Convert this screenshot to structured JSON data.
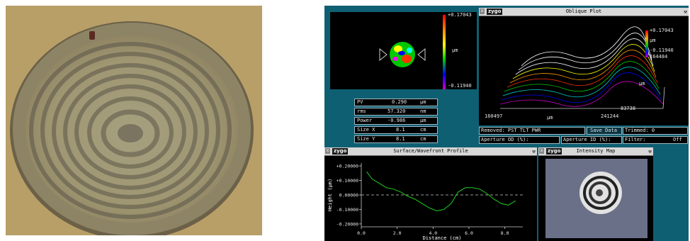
{
  "top_scale": {
    "max": "+0.17043",
    "unit": "µm",
    "min": "-0.11940"
  },
  "stats": [
    {
      "label": "PV",
      "value": "0.290",
      "unit": "µm"
    },
    {
      "label": "rms",
      "value": "57.320",
      "unit": "nm"
    },
    {
      "label": "Power",
      "value": "-0.986",
      "unit": "µm"
    },
    {
      "label": "Size X",
      "value": "8.1",
      "unit": "cm"
    },
    {
      "label": "Size Y",
      "value": "8.1",
      "unit": "cm"
    }
  ],
  "oblique": {
    "logo": "zygo",
    "title": "Oblique Plot",
    "scale_max": "+0.17043",
    "scale_unit": "µm",
    "scale_min": "-0.11940",
    "scale_extra": "164484",
    "axis_x_left": "160497",
    "axis_x_unit": "µm",
    "axis_x_right": "241244",
    "axis_y_val": "83738",
    "axis_y_unit": "µm"
  },
  "status_bar": {
    "removed": "Removed: PST TLT PWR",
    "save_data": "Save Data",
    "trimmed": "Trimmed: 0",
    "aperture_od": "Aperture OD (%):",
    "aperture_id": "Aperture ID (%):",
    "filter_label": "Filter:",
    "filter_value": "Off"
  },
  "profile": {
    "logo": "zygo",
    "title": "Surface/Wavefront Profile",
    "ylabel": "Height (µm)",
    "xlabel": "Distance (cm)"
  },
  "intensity": {
    "logo": "zygo",
    "title": "Intensity Map"
  },
  "chart_data": {
    "type": "line",
    "title": "Surface/Wavefront Profile",
    "xlabel": "Distance (cm)",
    "ylabel": "Height (µm)",
    "xlim": [
      0,
      9
    ],
    "ylim": [
      -0.22,
      0.22
    ],
    "x_ticks": [
      "0.0",
      "2.0",
      "4.0",
      "6.0",
      "8.0"
    ],
    "y_ticks": [
      "+0.20000",
      "+0.10000",
      "0.00000",
      "-0.10000",
      "-0.20000"
    ],
    "series": [
      {
        "x": [
          0.3,
          0.6,
          1.0,
          1.4,
          1.8,
          2.2,
          2.6,
          3.0,
          3.4,
          3.8,
          4.2,
          4.6,
          5.0,
          5.4,
          5.8,
          6.2,
          6.6,
          7.0,
          7.4,
          7.8,
          8.2,
          8.6
        ],
        "y": [
          0.16,
          0.11,
          0.08,
          0.05,
          0.04,
          0.02,
          -0.01,
          -0.03,
          -0.06,
          -0.09,
          -0.11,
          -0.1,
          -0.06,
          0.02,
          0.05,
          0.05,
          0.04,
          0.01,
          -0.03,
          -0.06,
          -0.07,
          -0.04
        ]
      }
    ],
    "grid": false
  }
}
